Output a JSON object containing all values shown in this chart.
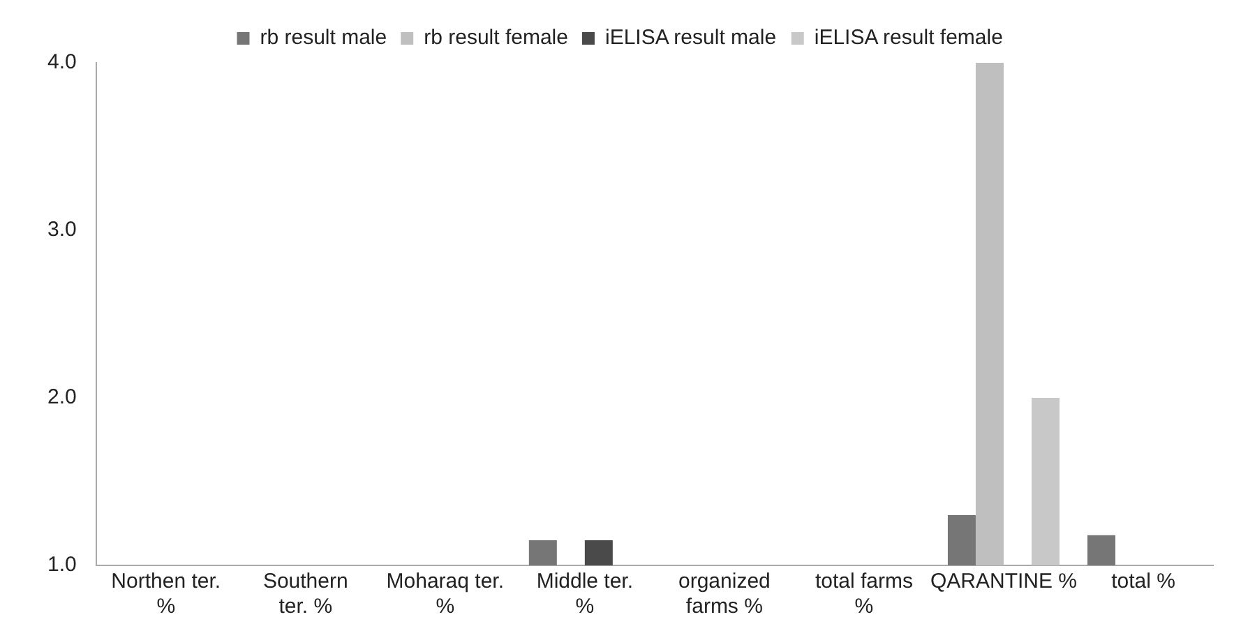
{
  "chart_data": {
    "type": "bar",
    "categories": [
      "Northen ter. %",
      "Southern ter. %",
      "Moharaq ter. %",
      "Middle ter. %",
      "organized farms %",
      "total farms %",
      "QARANTINE %",
      "total %"
    ],
    "series": [
      {
        "name": "rb result male",
        "color": "#767676",
        "values": [
          null,
          null,
          null,
          1.15,
          null,
          null,
          1.3,
          1.18
        ]
      },
      {
        "name": "rb result female",
        "color": "#bfbfbf",
        "values": [
          null,
          null,
          null,
          null,
          null,
          null,
          4.0,
          null
        ]
      },
      {
        "name": "iELISA result male",
        "color": "#4a4a4a",
        "values": [
          null,
          null,
          null,
          1.15,
          null,
          null,
          null,
          null
        ]
      },
      {
        "name": "iELISA result female",
        "color": "#c8c8c8",
        "values": [
          null,
          null,
          null,
          null,
          null,
          null,
          2.0,
          null
        ]
      }
    ],
    "ylim": [
      1,
      4
    ],
    "yticks": [
      {
        "value": 1,
        "label": "1.0"
      },
      {
        "value": 2,
        "label": "2.0"
      },
      {
        "value": 3,
        "label": "3.0"
      },
      {
        "value": 4,
        "label": "4.0"
      }
    ],
    "grid": false,
    "legend": "top"
  }
}
